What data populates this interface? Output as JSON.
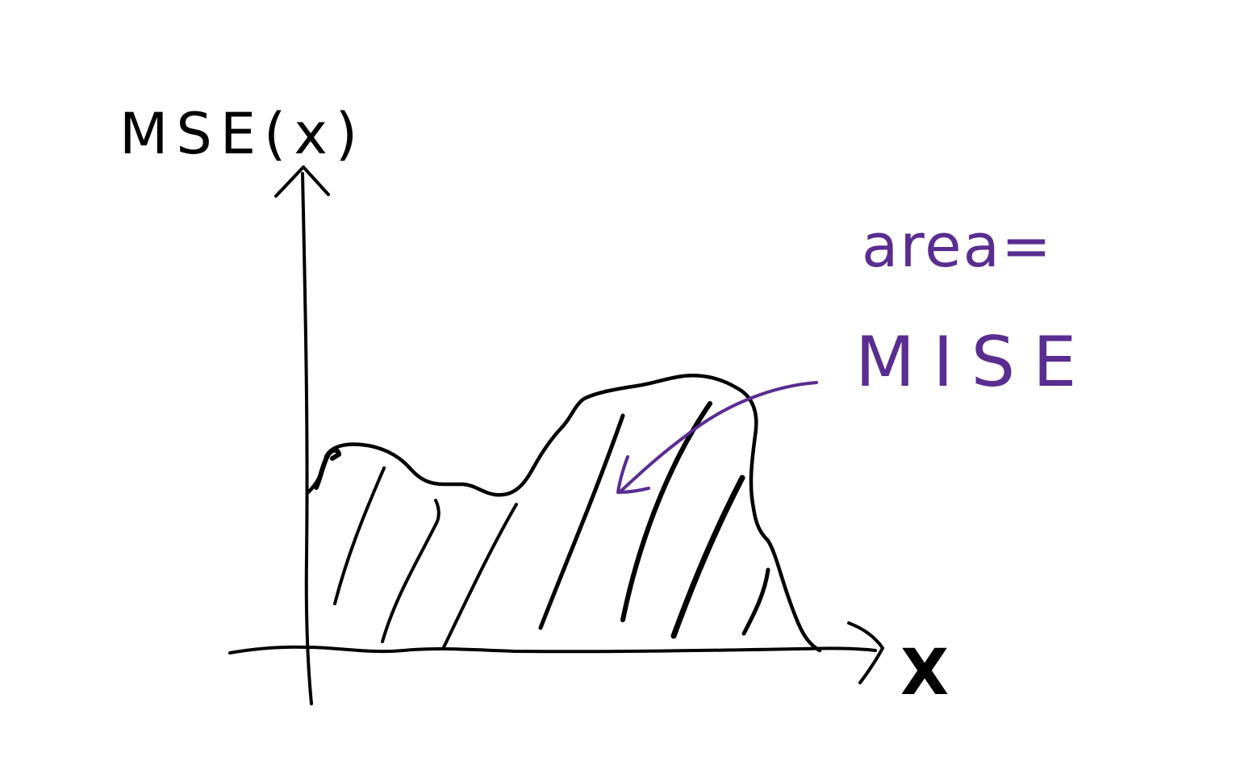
{
  "diagram": {
    "y_axis_label": "MSE(x)",
    "x_axis_label": "X",
    "annotation_line1": "area=",
    "annotation_line2": "MISE",
    "ink_color": "#000000",
    "annotation_color": "#5a2d91"
  }
}
